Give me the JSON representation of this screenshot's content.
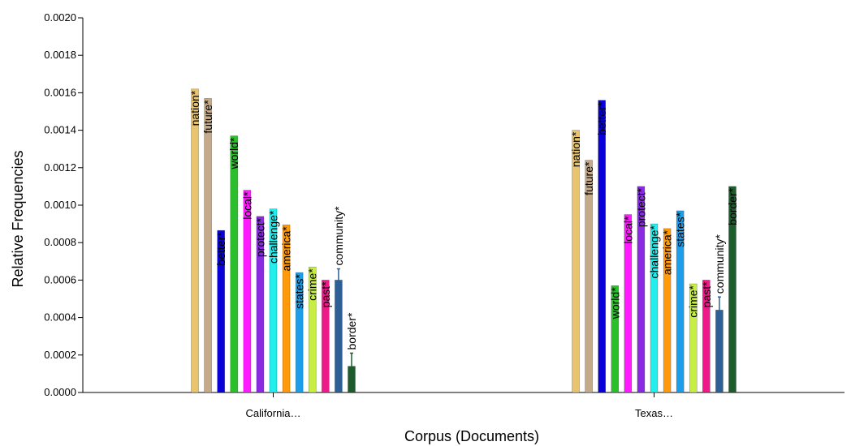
{
  "chart_data": {
    "type": "bar",
    "xlabel": "Corpus (Documents)",
    "ylabel": "Relative Frequencies",
    "ylim": [
      0,
      0.002
    ],
    "yticks": [
      "0.0000",
      "0.0002",
      "0.0004",
      "0.0006",
      "0.0008",
      "0.0010",
      "0.0012",
      "0.0014",
      "0.0016",
      "0.0018",
      "0.0020"
    ],
    "categories": [
      "California…",
      "Texas…"
    ],
    "series": [
      {
        "name": "nation*",
        "color": "#e8c46e",
        "values": [
          0.00162,
          0.0014
        ]
      },
      {
        "name": "future*",
        "color": "#c4aa88",
        "values": [
          0.00157,
          0.00124
        ]
      },
      {
        "name": "better*",
        "color": "#0a00d8",
        "values": [
          0.000865,
          0.00156
        ]
      },
      {
        "name": "world*",
        "color": "#2cbf2c",
        "values": [
          0.00137,
          0.00057
        ]
      },
      {
        "name": "local*",
        "color": "#ff1aff",
        "values": [
          0.00108,
          0.00095
        ]
      },
      {
        "name": "protect*",
        "color": "#8a2be2",
        "values": [
          0.00094,
          0.0011
        ]
      },
      {
        "name": "challenge*",
        "color": "#22eeee",
        "values": [
          0.00098,
          0.0009
        ]
      },
      {
        "name": "america*",
        "color": "#ff9b0a",
        "values": [
          0.000895,
          0.000875
        ]
      },
      {
        "name": "states*",
        "color": "#1e9ee8",
        "values": [
          0.00064,
          0.00097
        ]
      },
      {
        "name": "crime*",
        "color": "#c7ee44",
        "values": [
          0.00067,
          0.00058
        ]
      },
      {
        "name": "past*",
        "color": "#ee1a8a",
        "values": [
          0.0006,
          0.0006
        ]
      },
      {
        "name": "community*",
        "color": "#2e5f96",
        "values": [
          0.0006,
          0.00044
        ],
        "error": [
          6e-05,
          7e-05
        ]
      },
      {
        "name": "border*",
        "color": "#1e5c2e",
        "values": [
          0.00014,
          0.0011
        ],
        "error": [
          7e-05,
          0
        ]
      }
    ]
  }
}
